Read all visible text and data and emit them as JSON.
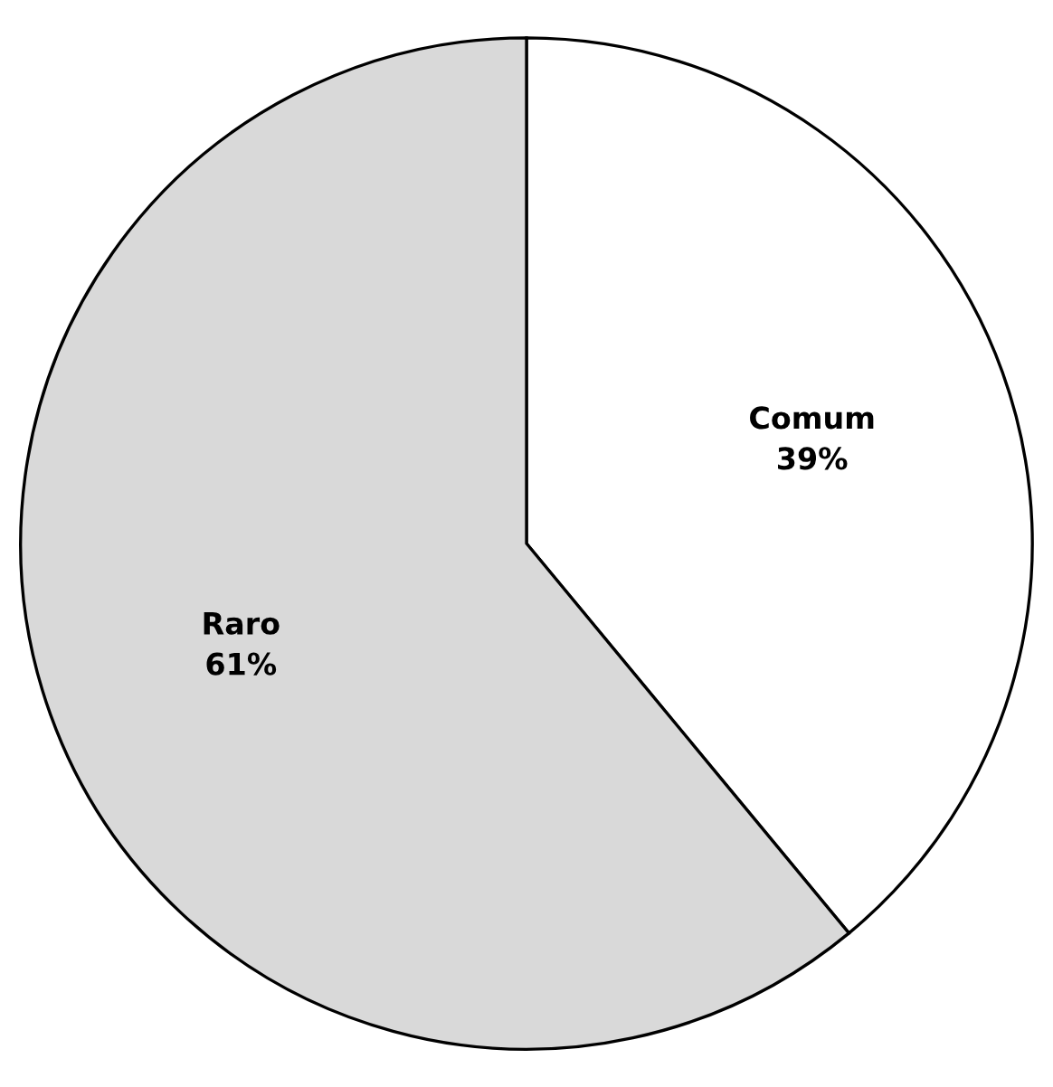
{
  "chart_data": {
    "type": "pie",
    "categories": [
      "Comum",
      "Raro"
    ],
    "values": [
      39,
      61
    ],
    "colors": [
      "#ffffff",
      "#d9d9d9"
    ],
    "value_labels": [
      "39%",
      "61%"
    ],
    "legend": false
  }
}
